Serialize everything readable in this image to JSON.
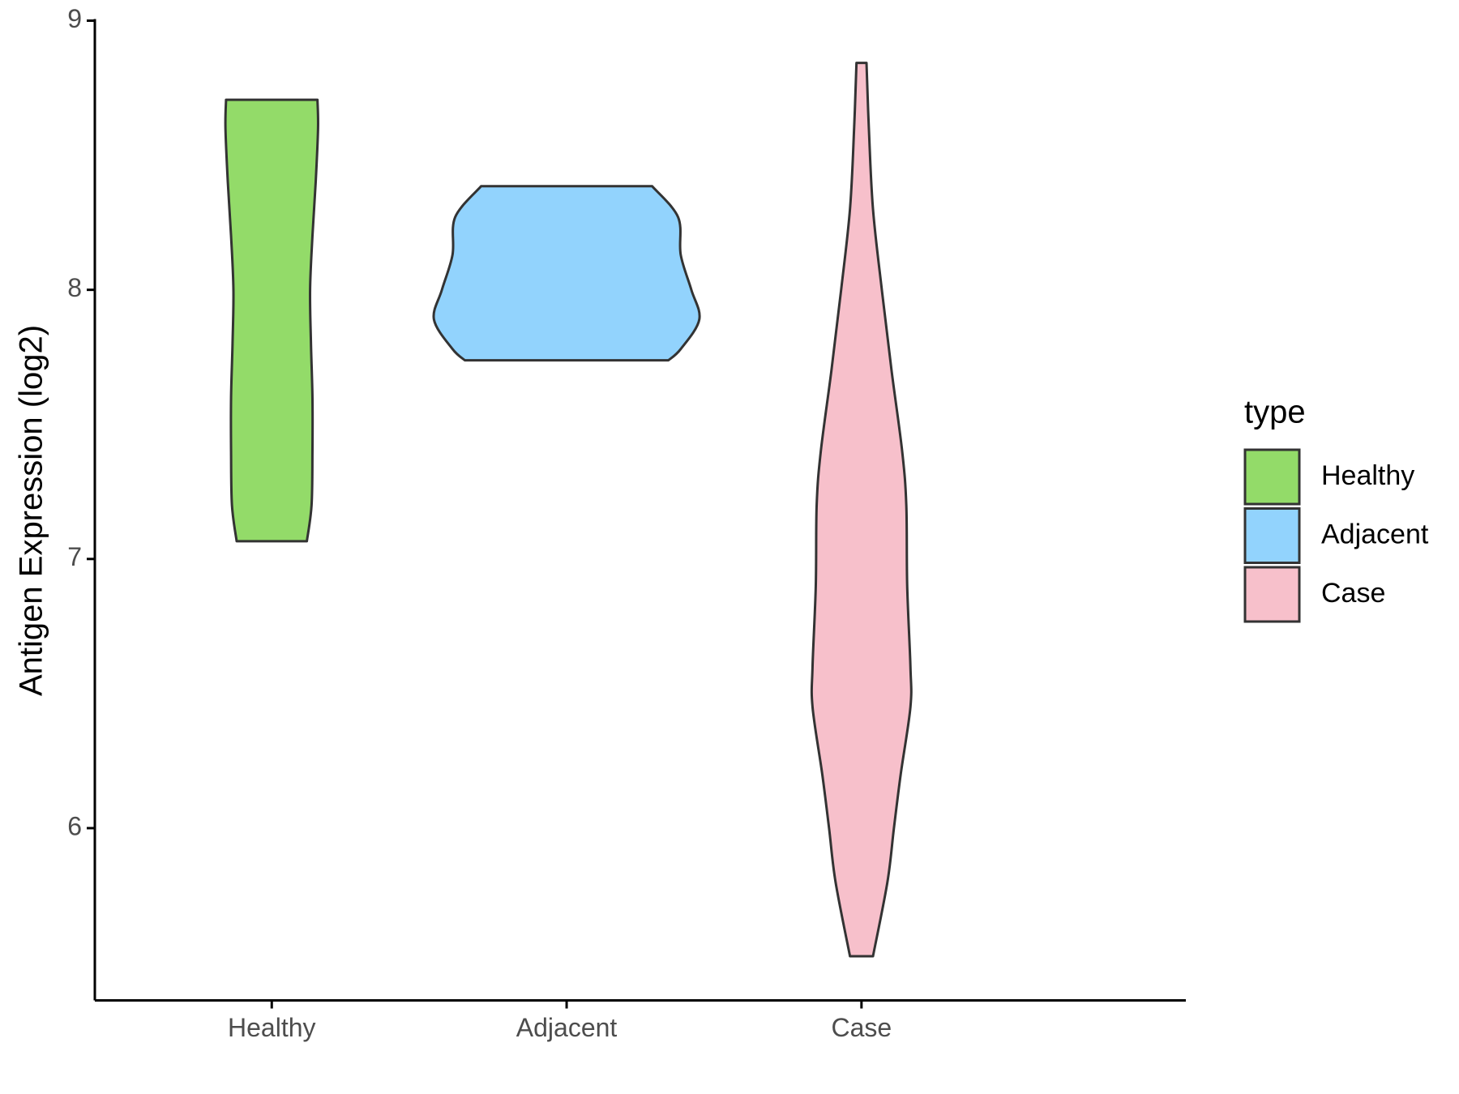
{
  "chart_data": {
    "type": "violin",
    "y_label": "Antigen Expression (log2)",
    "categories": [
      "Healthy",
      "Adjacent",
      "Case"
    ],
    "ylim": [
      5.36,
      9.0
    ],
    "yticks": [
      6,
      7,
      8,
      9
    ],
    "legend_title": "type",
    "legend": "right",
    "series": [
      {
        "name": "Healthy",
        "color": "#93db69",
        "y": [
          7.066,
          7.2,
          7.4,
          7.6,
          7.8,
          8.0,
          8.2,
          8.4,
          8.6,
          8.706
        ],
        "width": [
          0.119,
          0.135,
          0.138,
          0.138,
          0.133,
          0.13,
          0.138,
          0.149,
          0.157,
          0.155
        ]
      },
      {
        "name": "Adjacent",
        "color": "#92d3fd",
        "y": [
          7.738,
          7.78,
          7.89,
          8.0,
          8.13,
          8.27,
          8.385
        ],
        "width": [
          0.345,
          0.387,
          0.45,
          0.423,
          0.387,
          0.378,
          0.29
        ]
      },
      {
        "name": "Case",
        "color": "#f7c0cb",
        "y": [
          5.524,
          5.8,
          6.0,
          6.2,
          6.45,
          6.6,
          6.9,
          7.2,
          7.4,
          7.7,
          8.0,
          8.3,
          8.6,
          8.843
        ],
        "width": [
          0.039,
          0.088,
          0.11,
          0.133,
          0.166,
          0.166,
          0.155,
          0.152,
          0.138,
          0.102,
          0.069,
          0.039,
          0.025,
          0.017
        ]
      }
    ]
  }
}
